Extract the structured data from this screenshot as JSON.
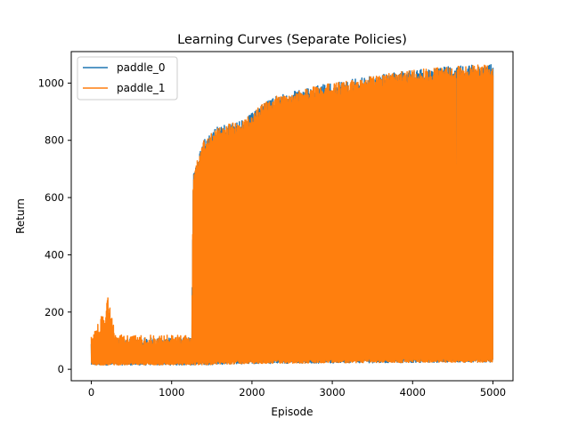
{
  "chart_data": {
    "type": "line",
    "title": "Learning Curves (Separate Policies)",
    "xlabel": "Episode",
    "ylabel": "Return",
    "xlim": [
      -250,
      5250
    ],
    "ylim": [
      -40,
      1110
    ],
    "xticks": [
      0,
      1000,
      2000,
      3000,
      4000,
      5000
    ],
    "yticks": [
      0,
      200,
      400,
      600,
      800,
      1000
    ],
    "grid": false,
    "legend_position": "top-left",
    "series": [
      {
        "name": "paddle_0",
        "color": "#1f77b4",
        "episodes": [
          0,
          5000
        ],
        "low_envelope": [
          [
            0,
            15
          ],
          [
            1000,
            15
          ],
          [
            1300,
            15
          ],
          [
            2000,
            20
          ],
          [
            3000,
            22
          ],
          [
            4000,
            24
          ],
          [
            5000,
            25
          ]
        ],
        "high_envelope": [
          [
            0,
            110
          ],
          [
            1250,
            110
          ],
          [
            1270,
            690
          ],
          [
            1400,
            800
          ],
          [
            1550,
            845
          ],
          [
            1900,
            870
          ],
          [
            2100,
            920
          ],
          [
            2300,
            955
          ],
          [
            2800,
            990
          ],
          [
            3200,
            1010
          ],
          [
            3600,
            1030
          ],
          [
            4000,
            1045
          ],
          [
            4500,
            1060
          ],
          [
            5000,
            1065
          ]
        ]
      },
      {
        "name": "paddle_1",
        "color": "#ff7f0e",
        "episodes": [
          0,
          5000
        ],
        "low_envelope": [
          [
            0,
            15
          ],
          [
            1000,
            15
          ],
          [
            1300,
            15
          ],
          [
            2000,
            20
          ],
          [
            3000,
            22
          ],
          [
            4000,
            24
          ],
          [
            5000,
            25
          ]
        ],
        "high_envelope": [
          [
            0,
            120
          ],
          [
            100,
            170
          ],
          [
            170,
            220
          ],
          [
            220,
            270
          ],
          [
            300,
            120
          ],
          [
            1250,
            120
          ],
          [
            1270,
            690
          ],
          [
            1400,
            800
          ],
          [
            1550,
            845
          ],
          [
            1900,
            870
          ],
          [
            2100,
            920
          ],
          [
            2300,
            955
          ],
          [
            2800,
            990
          ],
          [
            3200,
            1010
          ],
          [
            3600,
            1030
          ],
          [
            4000,
            1045
          ],
          [
            4500,
            1060
          ],
          [
            5000,
            1065
          ]
        ]
      }
    ]
  },
  "colors": {
    "paddle_0": "#1f77b4",
    "paddle_1": "#ff7f0e",
    "axes": "#000000",
    "legend_border": "#cccccc"
  }
}
